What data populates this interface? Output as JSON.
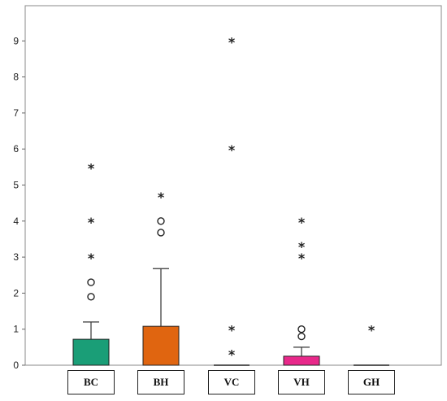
{
  "chart_data": {
    "type": "boxplot",
    "title": "",
    "xlabel": "",
    "ylabel": "",
    "ylim": [
      0,
      10
    ],
    "yticks": [
      "0",
      "1",
      "2",
      "3",
      "4",
      "5",
      "6",
      "7",
      "8",
      "9"
    ],
    "grid": false,
    "categories": [
      "BC",
      "BH",
      "VC",
      "VH",
      "GH"
    ],
    "series": [
      {
        "category": "BC",
        "q1": 0,
        "q3": 0.72,
        "median": 0,
        "whisker_low": 0,
        "whisker_high": 1.2,
        "color": "#1a9e77",
        "outliers_circle": [
          1.9,
          2.3
        ],
        "outliers_star": [
          3.0,
          4.0,
          5.5
        ]
      },
      {
        "category": "BH",
        "q1": 0,
        "q3": 1.08,
        "median": 0,
        "whisker_low": 0,
        "whisker_high": 2.68,
        "color": "#e06510",
        "outliers_circle": [
          3.68,
          4.0
        ],
        "outliers_star": [
          4.7
        ]
      },
      {
        "category": "VC",
        "q1": 0,
        "q3": 0,
        "median": 0,
        "whisker_low": 0,
        "whisker_high": 0,
        "color": "#555555",
        "outliers_circle": [],
        "outliers_star": [
          0.33,
          1.0,
          6.0,
          9.0
        ]
      },
      {
        "category": "VH",
        "q1": 0,
        "q3": 0.25,
        "median": 0,
        "whisker_low": 0,
        "whisker_high": 0.5,
        "color": "#e8288a",
        "outliers_circle": [
          0.8,
          1.0
        ],
        "outliers_star": [
          3.0,
          3.32,
          4.0
        ]
      },
      {
        "category": "GH",
        "q1": 0,
        "q3": 0,
        "median": 0,
        "whisker_low": 0,
        "whisker_high": 0,
        "color": "#555555",
        "outliers_circle": [],
        "outliers_star": [
          1.0
        ]
      }
    ]
  }
}
